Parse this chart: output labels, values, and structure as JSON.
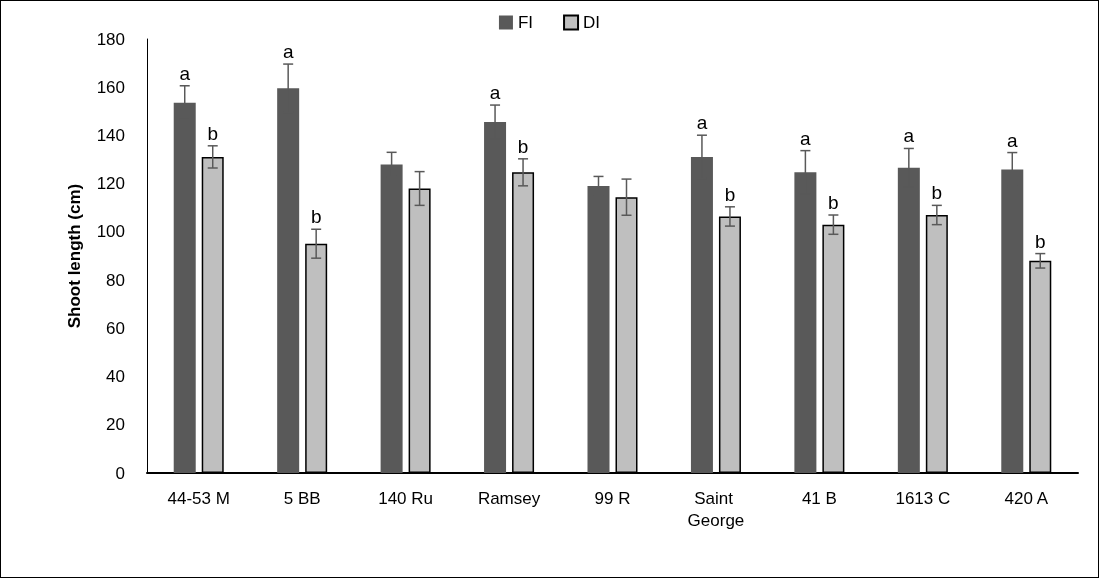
{
  "chart_data": {
    "type": "bar",
    "ylabel": "Shoot length (cm)",
    "categories": [
      "44-53 M",
      "5 BB",
      "140 Ru",
      "Ramsey",
      "99 R",
      "Saint George",
      "41 B",
      "1613 C",
      "420 A"
    ],
    "series": [
      {
        "name": "FI",
        "color": "#595959",
        "values": [
          153.6,
          159.6,
          128,
          145.6,
          119,
          131.1,
          124.7,
          126.6,
          125.9
        ],
        "errors": [
          7,
          10,
          5,
          7,
          4,
          9,
          9,
          8,
          7
        ]
      },
      {
        "name": "DI",
        "color": "#bfbfbf",
        "values": [
          131.1,
          95.1,
          118,
          124.7,
          114.4,
          106.4,
          103,
          107,
          88
        ],
        "errors": [
          4.6,
          6,
          7,
          5.6,
          7.5,
          4,
          4,
          4,
          3
        ]
      }
    ],
    "ylim": [
      0,
      180
    ],
    "yticks": [
      0,
      20,
      40,
      60,
      80,
      100,
      120,
      140,
      160,
      180
    ],
    "annotations": [
      {
        "text": "a",
        "x": "44-53 M",
        "y": 153.6
      },
      {
        "text": "b",
        "x": "44-53 M",
        "y": 131.1
      },
      {
        "text": "a",
        "x": "5 BB",
        "y": 159.6
      },
      {
        "text": "b",
        "x": "5 BB",
        "y": 95.1
      },
      {
        "text": "a",
        "x": "Ramsey",
        "y": 145.6
      },
      {
        "text": "b",
        "x": "Ramsey",
        "y": 124.7
      },
      {
        "text": "a",
        "x": "Saint George",
        "y": 131.1
      },
      {
        "text": "b",
        "x": "Saint George",
        "y": 106.4
      },
      {
        "text": "a",
        "x": "41 B",
        "y": 124.7
      },
      {
        "text": "b",
        "x": "41 B",
        "y": 103
      },
      {
        "text": "a",
        "x": "1613 C",
        "y": 126.6
      },
      {
        "text": "b",
        "x": "1613 C",
        "y": 107
      },
      {
        "text": "a",
        "x": "420 A",
        "y": 125.9
      },
      {
        "text": "b",
        "x": "420 A",
        "y": 88
      }
    ],
    "grid": false,
    "legend": "top"
  }
}
